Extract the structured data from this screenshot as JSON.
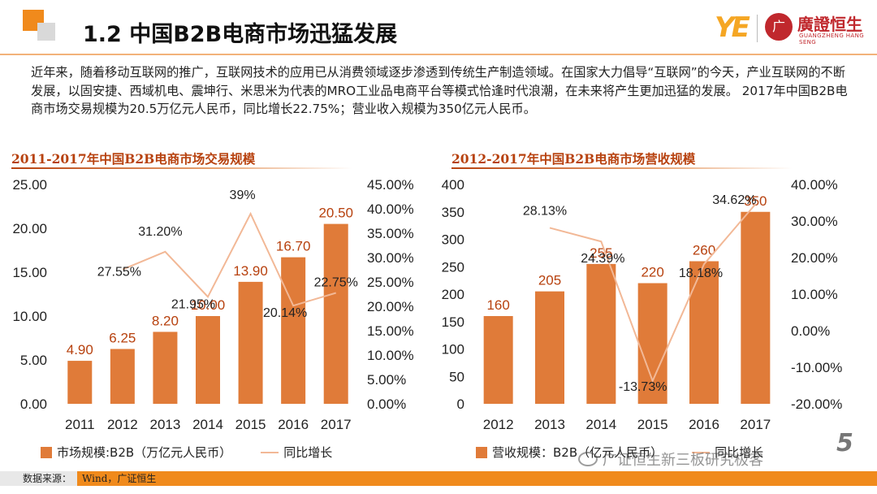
{
  "header": {
    "title": "1.2 中国B2B电商市场迅猛发展",
    "brand_logo_text": "YE",
    "brand_seal_text": "广",
    "brand_name": "廣證恒生",
    "brand_sub": "GUANGZHENG HANG SENG"
  },
  "intro_text": "近年来，随着移动互联网的推广，互联网技术的应用已从消费领域逐步渗透到传统生产制造领域。在国家大力倡导“互联网”的今天，产业互联网的不断发展，以固安捷、西域机电、震坤行、米思米为代表的MRO工业品电商平台等模式恰逢时代浪潮，在未来将产生更加迅猛的发展。 2017年中国B2B电商市场交易规模为20.5万亿元人民币，同比增长22.75%；营业收入规模为350亿元人民币。",
  "chart_data": [
    {
      "type": "bar",
      "title": "2011-2017年中国B2B电商市场交易规模",
      "categories": [
        "2011",
        "2012",
        "2013",
        "2014",
        "2015",
        "2016",
        "2017"
      ],
      "series": [
        {
          "name": "市场规模:B2B（万亿元人民币）",
          "type": "bar",
          "axis": "left",
          "values": [
            4.9,
            6.25,
            8.2,
            10.0,
            13.9,
            16.7,
            20.5
          ],
          "labels": [
            "4.90",
            "6.25",
            "8.20",
            "10.00",
            "13.90",
            "16.70",
            "20.50"
          ]
        },
        {
          "name": "同比增长",
          "type": "line",
          "axis": "right",
          "values": [
            null,
            27.55,
            31.2,
            21.95,
            39.0,
            20.14,
            22.75
          ],
          "labels": [
            "",
            "27.55%",
            "31.20%",
            "21.95%",
            "39%",
            "20.14%",
            "22.75%"
          ]
        }
      ],
      "ylim_left": [
        0,
        25
      ],
      "yticks_left": [
        "0.00",
        "5.00",
        "10.00",
        "15.00",
        "20.00",
        "25.00"
      ],
      "ylim_right": [
        0,
        45
      ],
      "yticks_right": [
        "0.00%",
        "5.00%",
        "10.00%",
        "15.00%",
        "20.00%",
        "25.00%",
        "30.00%",
        "35.00%",
        "40.00%",
        "45.00%"
      ],
      "legend_position": "bottom",
      "grid": false
    },
    {
      "type": "bar",
      "title": "2012-2017年中国B2B电商市场营收规模",
      "categories": [
        "2012",
        "2013",
        "2014",
        "2015",
        "2016",
        "2017"
      ],
      "series": [
        {
          "name": "营收规模：B2B（亿元人民币）",
          "type": "bar",
          "axis": "left",
          "values": [
            160,
            205,
            255,
            220,
            260,
            350
          ],
          "labels": [
            "160",
            "205",
            "255",
            "220",
            "260",
            "350"
          ]
        },
        {
          "name": "同比增长",
          "type": "line",
          "axis": "right",
          "values": [
            null,
            28.13,
            24.39,
            -13.73,
            18.18,
            34.62
          ],
          "labels": [
            "",
            "28.13%",
            "24.39%",
            "-13.73%",
            "18.18%",
            "34.62%"
          ]
        }
      ],
      "ylim_left": [
        0,
        400
      ],
      "yticks_left": [
        "0",
        "50",
        "100",
        "150",
        "200",
        "250",
        "300",
        "350",
        "400"
      ],
      "ylim_right": [
        -20,
        40
      ],
      "yticks_right": [
        "-20.00%",
        "-10.00%",
        "0.00%",
        "10.00%",
        "20.00%",
        "30.00%",
        "40.00%"
      ],
      "legend_position": "bottom",
      "grid": false
    }
  ],
  "legend1": {
    "bar_label": "市场规模:B2B（万亿元人民币）",
    "line_label": "同比增长"
  },
  "legend2": {
    "bar_label": "营收规模：B2B（亿元人民币）",
    "line_label": "同比增长"
  },
  "watermark": "广证恒生新三板研究极客",
  "page_number": "5",
  "footer": {
    "label": "数据来源：",
    "value": "Wind，广证恒生"
  },
  "colors": {
    "accent": "#f08a1c",
    "bar": "#e07b39",
    "line": "#f2b896",
    "label_red": "#b7410e",
    "seal": "#c0282d"
  }
}
